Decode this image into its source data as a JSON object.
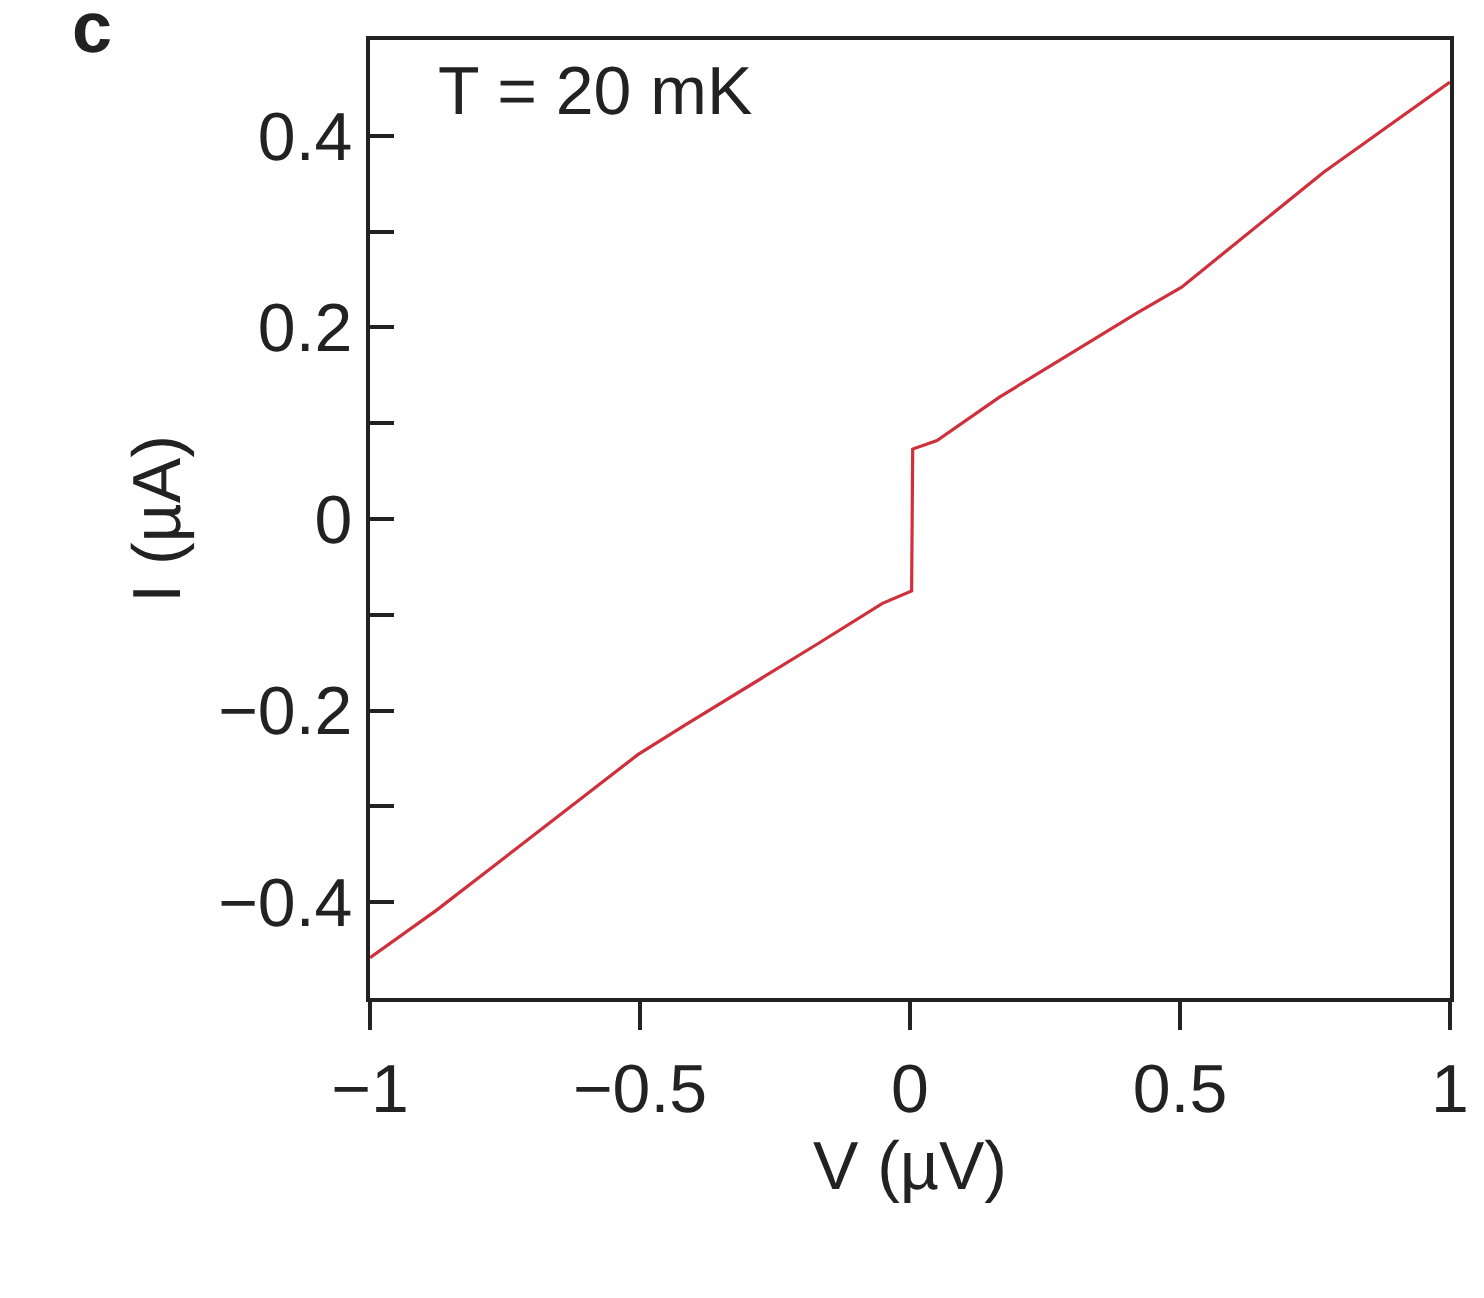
{
  "chart_data": {
    "type": "line",
    "title": "c",
    "xlabel": "V (µV)",
    "ylabel": "I (µA)",
    "annotations": [
      "T = 20 mK"
    ],
    "x": [
      -1,
      -0.876,
      -0.504,
      -0.416,
      -0.173,
      -0.051,
      0.003,
      0.005,
      0.05,
      0.165,
      0.42,
      0.503,
      0.766,
      1
    ],
    "series": [
      {
        "color": "#d0303c",
        "values": [
          -0.458,
          -0.408,
          -0.246,
          -0.215,
          -0.131,
          -0.088,
          -0.075,
          0.073,
          0.082,
          0.127,
          0.215,
          0.242,
          0.362,
          0.456
        ]
      }
    ],
    "xlim": [
      -1,
      1
    ],
    "xticks": [
      -1,
      -0.5,
      0,
      0.5,
      1
    ],
    "ylim": [
      -0.5,
      0.5
    ],
    "yticks": [
      {
        "value": -0.5,
        "label": null
      },
      -0.4,
      {
        "value": -0.3,
        "label": null
      },
      -0.2,
      {
        "value": -0.1,
        "label": null
      },
      0,
      {
        "value": 0.1,
        "label": null
      },
      0.2,
      {
        "value": 0.3,
        "label": null
      },
      0.4,
      {
        "value": 0.5,
        "label": null
      }
    ],
    "grid": false,
    "legend": false,
    "marker": "none",
    "line_style": "solid"
  }
}
